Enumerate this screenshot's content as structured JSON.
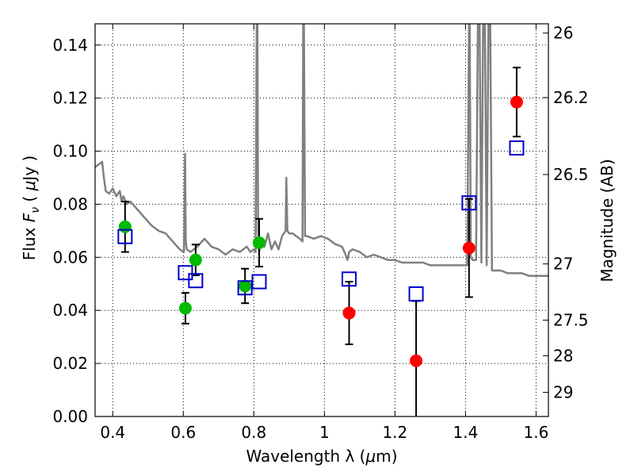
{
  "chart_data": {
    "type": "scatter",
    "title": "",
    "xlabel": "Wavelength  λ (μm)",
    "ylabel": "Flux  F_ν  ( μJy )",
    "y2label": "Magnitude (AB)",
    "xlim": [
      0.35,
      1.635
    ],
    "ylim": [
      0.0,
      0.148
    ],
    "grid": true,
    "grid_style": "dotted",
    "x_ticks": [
      0.4,
      0.6,
      0.8,
      1.0,
      1.2,
      1.4,
      1.6
    ],
    "x_tick_labels": [
      "0.4",
      "0.6",
      "0.8",
      "1",
      "1.2",
      "1.4",
      "1.6"
    ],
    "y_ticks": [
      0.0,
      0.02,
      0.04,
      0.06,
      0.08,
      0.1,
      0.12,
      0.14
    ],
    "y_tick_labels": [
      "0.00",
      "0.02",
      "0.04",
      "0.06",
      "0.08",
      "0.10",
      "0.12",
      "0.14"
    ],
    "y2_ticks": [
      {
        "label": "26",
        "flux": 0.1445
      },
      {
        "label": "26.2",
        "flux": 0.1202
      },
      {
        "label": "26.5",
        "flux": 0.0912
      },
      {
        "label": "27",
        "flux": 0.0575
      },
      {
        "label": "27.5",
        "flux": 0.0363
      },
      {
        "label": "28",
        "flux": 0.0229
      },
      {
        "label": "29",
        "flux": 0.0091
      }
    ],
    "series": [
      {
        "kind": "points",
        "marker": "circle",
        "color": "#00bb00",
        "x": [
          0.435,
          0.606,
          0.635,
          0.775,
          0.815
        ],
        "y": [
          0.0715,
          0.0408,
          0.059,
          0.0492,
          0.0655
        ],
        "yerr": [
          0.0095,
          0.0058,
          0.0058,
          0.0065,
          0.009
        ]
      },
      {
        "kind": "points",
        "marker": "circle",
        "color": "#ff0000",
        "x": [
          1.07,
          1.26,
          1.41,
          1.545
        ],
        "y": [
          0.039,
          0.021,
          0.0635,
          0.1185
        ],
        "yerr": [
          0.0118,
          0.0225,
          0.0185,
          0.013
        ]
      },
      {
        "kind": "points",
        "marker": "square",
        "color": "#0000cc",
        "x": [
          0.435,
          0.606,
          0.635,
          0.775,
          0.815,
          1.07,
          1.26,
          1.41,
          1.545
        ],
        "y": [
          0.0678,
          0.0542,
          0.0512,
          0.0485,
          0.0508,
          0.0518,
          0.0462,
          0.0805,
          0.1012
        ]
      },
      {
        "kind": "line",
        "color": "#808080",
        "x": [
          0.35,
          0.37,
          0.375,
          0.38,
          0.39,
          0.4,
          0.41,
          0.42,
          0.425,
          0.43,
          0.44,
          0.45,
          0.47,
          0.49,
          0.51,
          0.53,
          0.55,
          0.57,
          0.59,
          0.6,
          0.602,
          0.605,
          0.607,
          0.61,
          0.62,
          0.64,
          0.66,
          0.68,
          0.7,
          0.72,
          0.74,
          0.76,
          0.78,
          0.79,
          0.8,
          0.805,
          0.808,
          0.81,
          0.812,
          0.815,
          0.82,
          0.83,
          0.84,
          0.85,
          0.86,
          0.87,
          0.88,
          0.89,
          0.892,
          0.895,
          0.9,
          0.91,
          0.92,
          0.93,
          0.938,
          0.94,
          0.942,
          0.945,
          0.95,
          0.97,
          0.99,
          1.01,
          1.03,
          1.05,
          1.06,
          1.065,
          1.07,
          1.08,
          1.1,
          1.12,
          1.14,
          1.16,
          1.18,
          1.2,
          1.22,
          1.24,
          1.26,
          1.28,
          1.3,
          1.32,
          1.34,
          1.36,
          1.38,
          1.4,
          1.405,
          1.41,
          1.412,
          1.415,
          1.42,
          1.43,
          1.435,
          1.44,
          1.445,
          1.45,
          1.455,
          1.46,
          1.465,
          1.47,
          1.475,
          1.48,
          1.5,
          1.52,
          1.54,
          1.56,
          1.58,
          1.6,
          1.62,
          1.635
        ],
        "y": [
          0.094,
          0.096,
          0.09,
          0.085,
          0.084,
          0.086,
          0.083,
          0.085,
          0.081,
          0.083,
          0.08,
          0.081,
          0.078,
          0.075,
          0.072,
          0.07,
          0.069,
          0.066,
          0.063,
          0.062,
          0.062,
          0.099,
          0.066,
          0.063,
          0.062,
          0.064,
          0.067,
          0.064,
          0.063,
          0.061,
          0.063,
          0.062,
          0.064,
          0.062,
          0.063,
          0.062,
          0.148,
          0.148,
          0.07,
          0.062,
          0.066,
          0.064,
          0.069,
          0.063,
          0.066,
          0.063,
          0.068,
          0.07,
          0.09,
          0.07,
          0.069,
          0.069,
          0.068,
          0.067,
          0.066,
          0.148,
          0.148,
          0.068,
          0.068,
          0.067,
          0.068,
          0.067,
          0.065,
          0.064,
          0.061,
          0.059,
          0.062,
          0.063,
          0.062,
          0.06,
          0.061,
          0.06,
          0.059,
          0.059,
          0.058,
          0.058,
          0.058,
          0.058,
          0.057,
          0.057,
          0.057,
          0.057,
          0.057,
          0.057,
          0.057,
          0.148,
          0.148,
          0.06,
          0.059,
          0.059,
          0.148,
          0.148,
          0.058,
          0.148,
          0.148,
          0.057,
          0.148,
          0.148,
          0.055,
          0.055,
          0.055,
          0.054,
          0.054,
          0.054,
          0.053,
          0.053,
          0.053,
          0.053
        ]
      }
    ]
  }
}
